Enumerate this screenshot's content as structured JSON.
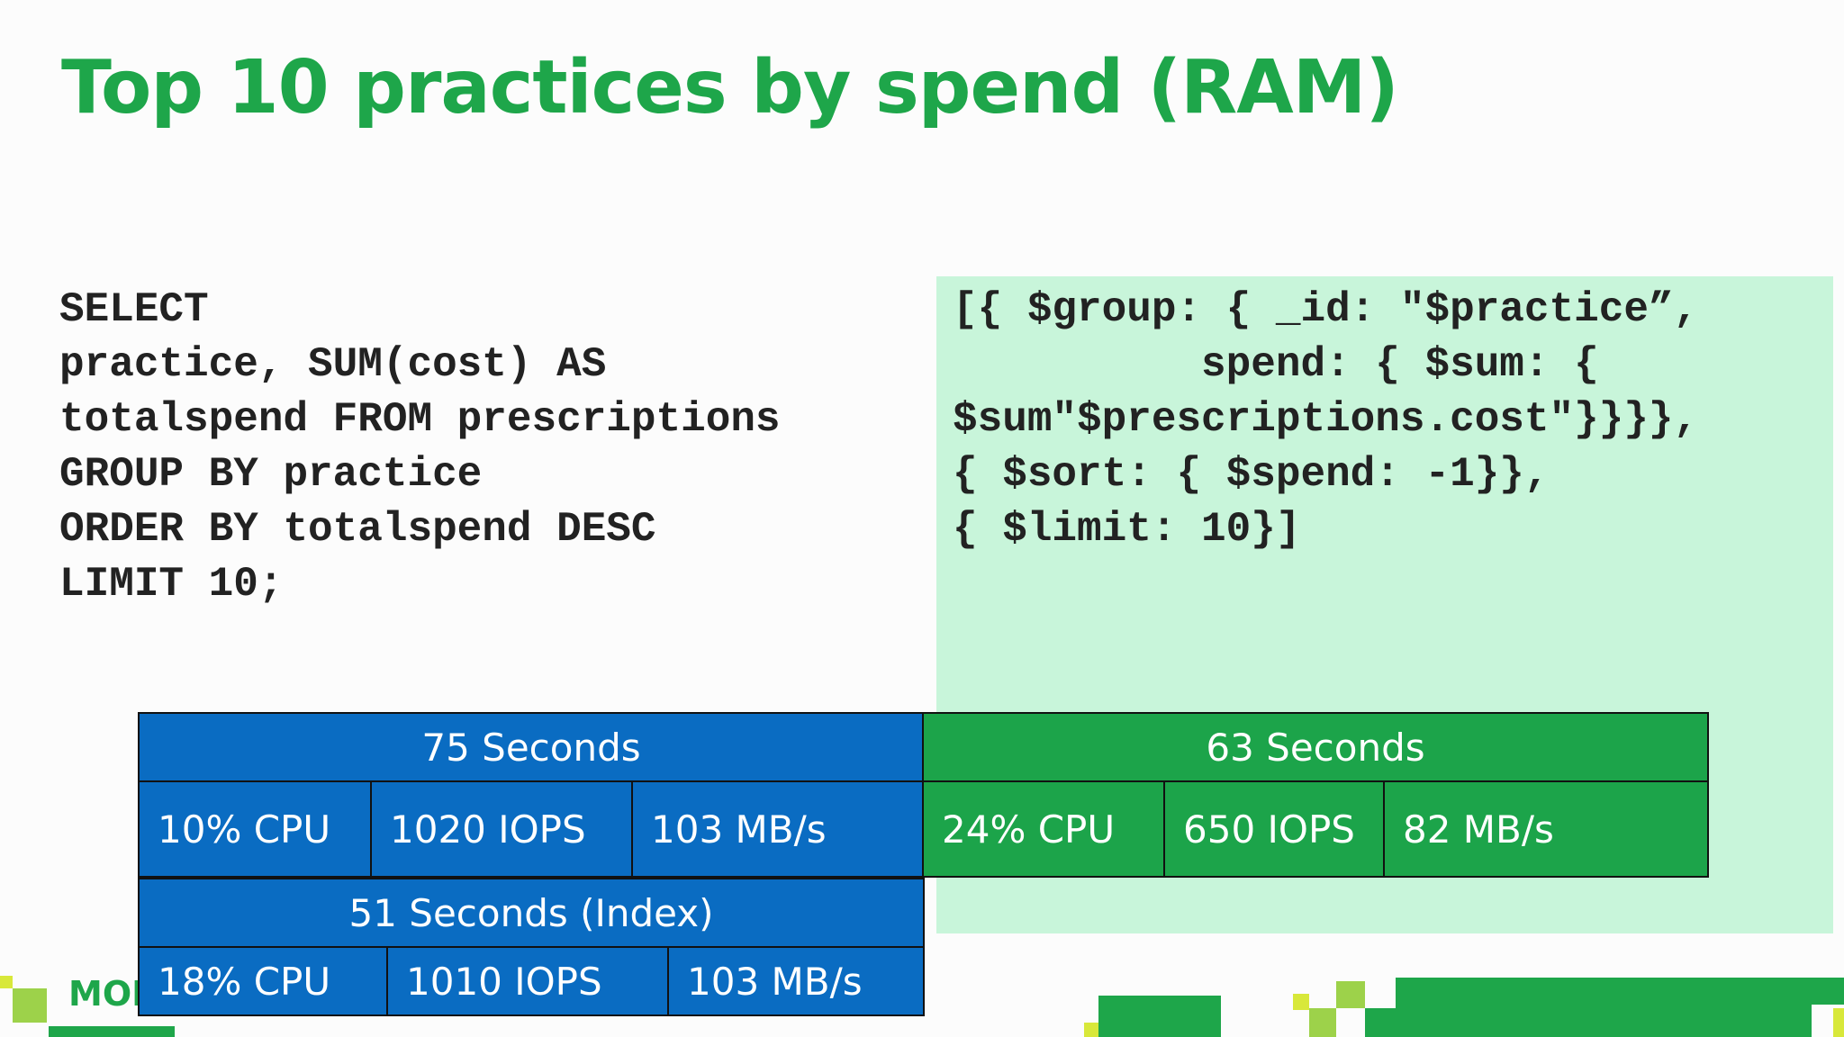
{
  "slide": {
    "title": "Top 10 practices by spend (RAM)",
    "sql_query": "SELECT\npractice, SUM(cost) AS\ntotalspend FROM prescriptions\nGROUP BY practice\nORDER BY totalspend DESC\nLIMIT 10;",
    "mongo_query": "[{ $group: { _id: \"$practice”,\n          spend: { $sum: {\n$sum\"$prescriptions.cost\"}}}},\n{ $sort: { $spend: -1}},\n{ $limit: 10}]",
    "logo_text": "MON"
  },
  "results": {
    "sql": {
      "time": "75 Seconds",
      "cpu": "10% CPU",
      "iops": "1020 IOPS",
      "throughput": "103 MB/s"
    },
    "mongo": {
      "time": "63 Seconds",
      "cpu": "24% CPU",
      "iops": "650 IOPS",
      "throughput": "82 MB/s"
    },
    "sql_index": {
      "time": "51 Seconds (Index)",
      "cpu": "18% CPU",
      "iops": "1010 IOPS",
      "throughput": "103 MB/s"
    }
  },
  "colors": {
    "title_green": "#1ea64a",
    "sql_blue": "#0a6cc2",
    "mongo_green": "#1ca44a",
    "mongo_panel": "#c8f5da"
  }
}
